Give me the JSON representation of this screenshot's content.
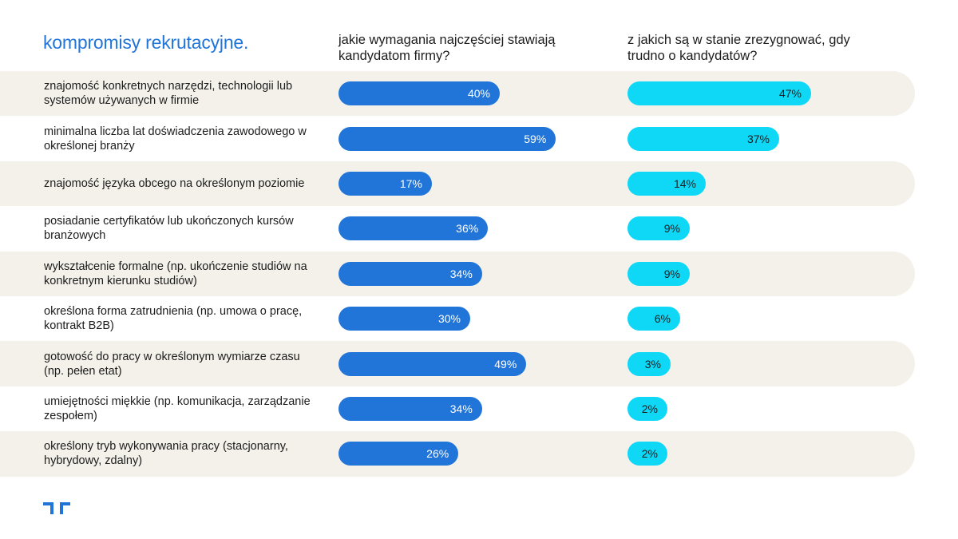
{
  "header": {
    "title": "kompromisy rekrutacyjne.",
    "col1": "jakie wymagania najczęściej stawiają kandydatom firmy?",
    "col2": "z jakich są w stanie zrezygnować, gdy trudno o kandydatów?"
  },
  "colors": {
    "accent": "#2175d9",
    "demand_bar": "#2175d9",
    "waive_bar": "#0fd8f7",
    "row_bg": "#f3f1ea"
  },
  "icons": {
    "logo": "randstad-logo-icon"
  },
  "chart_data": {
    "type": "bar",
    "orientation": "horizontal",
    "title": "kompromisy rekrutacyjne.",
    "categories": [
      "znajomość konkretnych narzędzi, technologii lub systemów używanych w firmie",
      "minimalna liczba lat doświadczenia zawodowego w określonej branży",
      "znajomość języka obcego na określonym poziomie",
      "posiadanie certyfikatów lub ukończonych kursów branżowych",
      "wykształcenie formalne (np. ukończenie studiów na konkretnym kierunku studiów)",
      "określona forma zatrudnienia (np. umowa o pracę, kontrakt B2B)",
      "gotowość do pracy w określonym wymiarze czasu (np. pełen etat)",
      "umiejętności miękkie (np. komunikacja, zarządzanie zespołem)",
      "określony tryb wykonywania pracy (stacjonarny, hybrydowy, zdalny)"
    ],
    "series": [
      {
        "name": "jakie wymagania najczęściej stawiają kandydatom firmy?",
        "values": [
          40,
          59,
          17,
          36,
          34,
          30,
          49,
          34,
          26
        ],
        "labels": [
          "40%",
          "59%",
          "17%",
          "36%",
          "34%",
          "30%",
          "49%",
          "34%",
          "26%"
        ]
      },
      {
        "name": "z jakich są w stanie zrezygnować, gdy trudno o kandydatów?",
        "values": [
          47,
          37,
          14,
          9,
          9,
          6,
          3,
          2,
          2
        ],
        "labels": [
          "47%",
          "37%",
          "14%",
          "9%",
          "9%",
          "6%",
          "3%",
          "2%",
          "2%"
        ]
      }
    ],
    "unit": "%",
    "xlim": [
      0,
      100
    ],
    "grid": false,
    "legend": "none"
  }
}
